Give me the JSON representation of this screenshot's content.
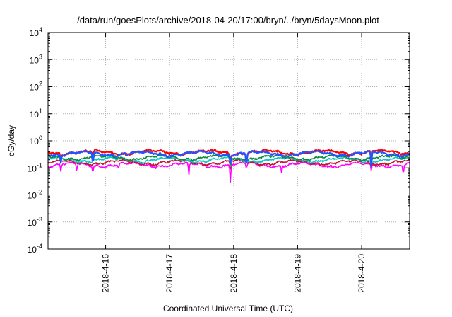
{
  "chart_data": {
    "type": "line",
    "title": "/data/run/goesPlots/archive/2018-04-20/17:00/bryn/../bryn/5daysMoon.plot",
    "xlabel": "Coordinated Universal Time (UTC)",
    "ylabel": "cGy/day",
    "yscale": "log",
    "ylim": [
      0.0001,
      10000
    ],
    "yticks": [
      {
        "base": "10",
        "exp": "-4"
      },
      {
        "base": "10",
        "exp": "-3"
      },
      {
        "base": "10",
        "exp": "-2"
      },
      {
        "base": "10",
        "exp": "-1"
      },
      {
        "base": "10",
        "exp": "0"
      },
      {
        "base": "10",
        "exp": "1"
      },
      {
        "base": "10",
        "exp": "2"
      },
      {
        "base": "10",
        "exp": "3"
      },
      {
        "base": "10",
        "exp": "4"
      }
    ],
    "xlim_days": [
      15.1,
      20.75
    ],
    "xticks": [
      {
        "label": "2018-4-16",
        "day": 16
      },
      {
        "label": "2018-4-17",
        "day": 17
      },
      {
        "label": "2018-4-18",
        "day": 18
      },
      {
        "label": "2018-4-19",
        "day": 19
      },
      {
        "label": "2018-4-20",
        "day": 20
      }
    ],
    "grid": true,
    "legend": "none",
    "series": [
      {
        "color": "#ff00ff",
        "typical": 0.13,
        "dips": [
          {
            "day": 15.3,
            "value": 0.075
          },
          {
            "day": 15.55,
            "value": 0.08
          },
          {
            "day": 15.8,
            "value": 0.07
          },
          {
            "day": 16.2,
            "value": 0.1
          },
          {
            "day": 17.3,
            "value": 0.055
          },
          {
            "day": 17.95,
            "value": 0.028
          },
          {
            "day": 18.2,
            "value": 0.1
          },
          {
            "day": 18.75,
            "value": 0.065
          },
          {
            "day": 20.15,
            "value": 0.08
          },
          {
            "day": 20.65,
            "value": 0.06
          }
        ]
      },
      {
        "color": "#c8102e",
        "typical": 0.16,
        "dips": [
          {
            "day": 17.95,
            "value": 0.09
          },
          {
            "day": 20.15,
            "value": 0.11
          }
        ]
      },
      {
        "color": "#00c8c8",
        "typical": 0.2,
        "dips": [
          {
            "day": 17.95,
            "value": 0.11
          },
          {
            "day": 20.15,
            "value": 0.13
          }
        ]
      },
      {
        "color": "#0a8a3a",
        "typical": 0.24,
        "dips": [
          {
            "day": 17.95,
            "value": 0.13
          },
          {
            "day": 20.15,
            "value": 0.15
          }
        ]
      },
      {
        "color": "#ff0000",
        "typical": 0.38,
        "dips": [
          {
            "day": 15.3,
            "value": 0.18
          },
          {
            "day": 15.8,
            "value": 0.16
          },
          {
            "day": 17.95,
            "value": 0.17
          },
          {
            "day": 18.2,
            "value": 0.15
          },
          {
            "day": 20.15,
            "value": 0.14
          }
        ]
      },
      {
        "color": "#2255ff",
        "typical": 0.34,
        "dips": [
          {
            "day": 15.3,
            "value": 0.15
          },
          {
            "day": 15.8,
            "value": 0.14
          },
          {
            "day": 17.95,
            "value": 0.14
          },
          {
            "day": 18.2,
            "value": 0.12
          },
          {
            "day": 20.15,
            "value": 0.11
          }
        ]
      }
    ]
  }
}
